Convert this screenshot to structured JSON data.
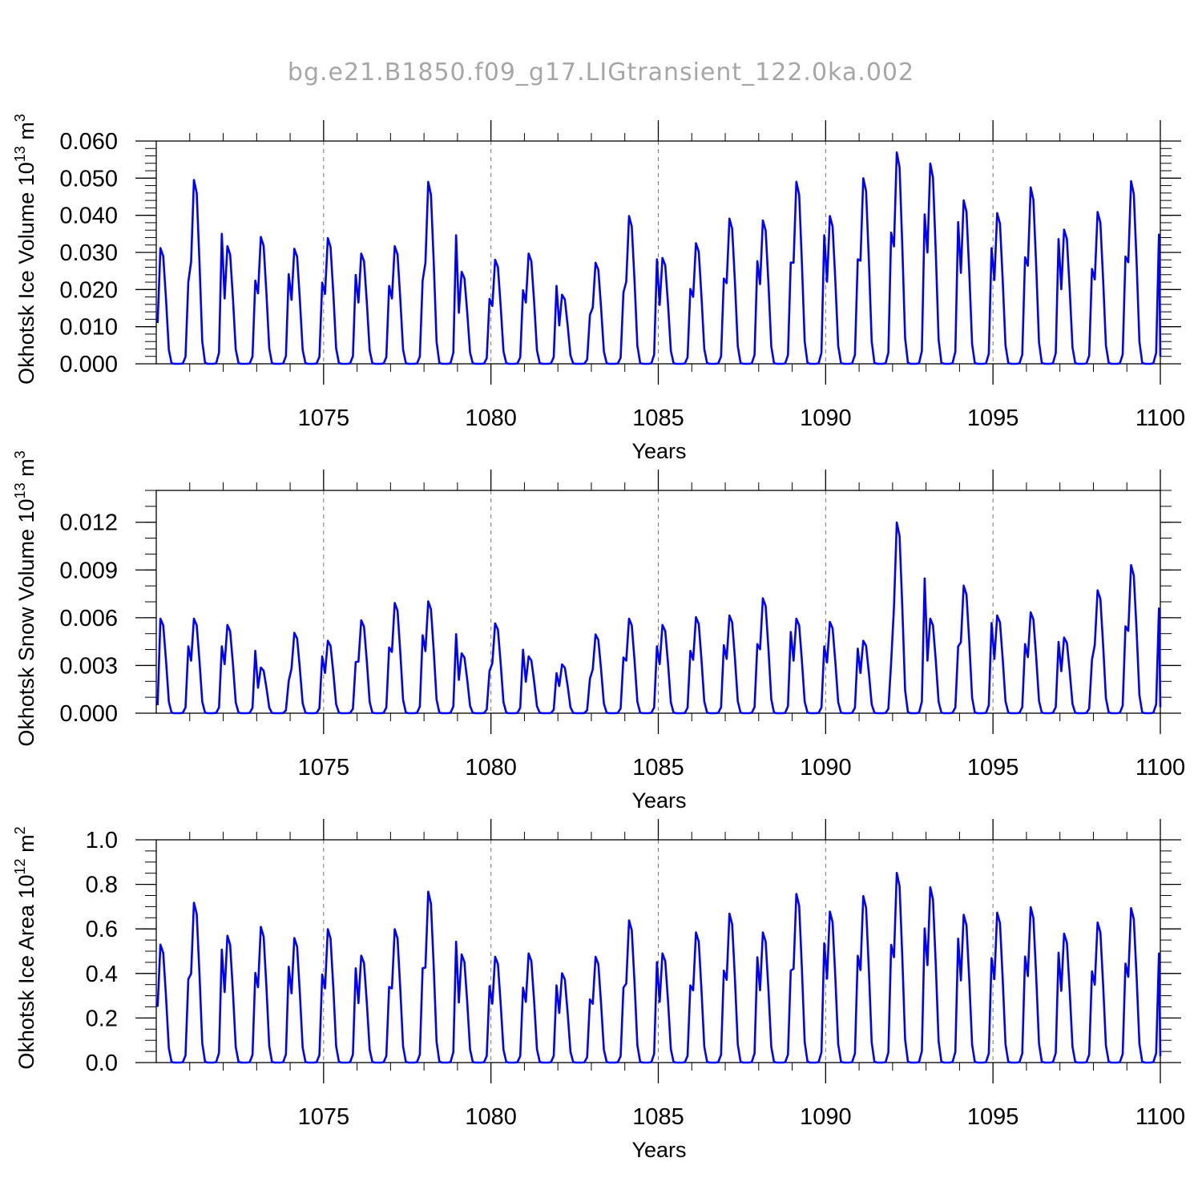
{
  "chart_data": [
    {
      "type": "line",
      "title": "bg.e21.B1850.f09_g17.LIGtransient_122.0ka.002",
      "xlabel": "Years",
      "ylabel": "Okhotsk Ice Volume 10",
      "ylabel_exp": "13",
      "ylabel_unit": " m",
      "ylabel_unit_exp": "3",
      "xlim": [
        1070,
        1100
      ],
      "ylim": [
        0,
        0.06
      ],
      "x_ticks": [
        1075,
        1080,
        1085,
        1090,
        1095,
        1100
      ],
      "x_tick_labels": [
        "1075",
        "1080",
        "1085",
        "1090",
        "1095",
        "1100"
      ],
      "y_ticks": [
        0,
        0.01,
        0.02,
        0.03,
        0.04,
        0.05,
        0.06
      ],
      "y_tick_labels": [
        "0.000",
        "0.010",
        "0.020",
        "0.030",
        "0.040",
        "0.050",
        "0.060"
      ],
      "y_minor_step": 0.002,
      "vgrid": [
        1075,
        1080,
        1085,
        1090,
        1095
      ],
      "color": "#0000ff",
      "series_name": "Okhotsk Ice Volume",
      "start_value": 0.011,
      "annual_peaks": [
        0.0315,
        0.05,
        0.032,
        0.0345,
        0.0313,
        0.0342,
        0.03,
        0.032,
        0.0495,
        0.025,
        0.0283,
        0.03,
        0.0188,
        0.0275,
        0.0402,
        0.0288,
        0.0328,
        0.0395,
        0.039,
        0.0495,
        0.0402,
        0.0505,
        0.0575,
        0.0545,
        0.0445,
        0.041,
        0.048,
        0.0365,
        0.0413,
        0.0497
      ]
    },
    {
      "type": "line",
      "title": "",
      "xlabel": "Years",
      "ylabel": "Okhotsk Snow Volume 10",
      "ylabel_exp": "13",
      "ylabel_unit": " m",
      "ylabel_unit_exp": "3",
      "xlim": [
        1070,
        1100
      ],
      "ylim": [
        0,
        0.014
      ],
      "x_ticks": [
        1075,
        1080,
        1085,
        1090,
        1095,
        1100
      ],
      "x_tick_labels": [
        "1075",
        "1080",
        "1085",
        "1090",
        "1095",
        "1100"
      ],
      "y_ticks": [
        0,
        0.003,
        0.006,
        0.009,
        0.012
      ],
      "y_tick_labels": [
        "0.000",
        "0.003",
        "0.006",
        "0.009",
        "0.012"
      ],
      "y_minor_step": 0.001,
      "vgrid": [
        1075,
        1080,
        1085,
        1090,
        1095
      ],
      "color": "#0000ff",
      "series_name": "Okhotsk Snow Volume",
      "start_value": 0.0005,
      "annual_peaks": [
        0.006,
        0.006,
        0.0056,
        0.0029,
        0.0051,
        0.0046,
        0.0059,
        0.007,
        0.0071,
        0.0038,
        0.0057,
        0.0036,
        0.0031,
        0.005,
        0.006,
        0.0056,
        0.0061,
        0.0062,
        0.0073,
        0.006,
        0.0058,
        0.0046,
        0.0121,
        0.006,
        0.0081,
        0.0062,
        0.0064,
        0.0048,
        0.0078,
        0.0094
      ]
    },
    {
      "type": "line",
      "title": "",
      "xlabel": "Years",
      "ylabel": "Okhotsk Ice Area 10",
      "ylabel_exp": "12",
      "ylabel_unit": " m",
      "ylabel_unit_exp": "2",
      "xlim": [
        1070,
        1100
      ],
      "ylim": [
        0,
        1.0
      ],
      "x_ticks": [
        1075,
        1080,
        1085,
        1090,
        1095,
        1100
      ],
      "x_tick_labels": [
        "1075",
        "1080",
        "1085",
        "1090",
        "1095",
        "1100"
      ],
      "y_ticks": [
        0,
        0.2,
        0.4,
        0.6,
        0.8,
        1.0
      ],
      "y_tick_labels": [
        "0.0",
        "0.2",
        "0.4",
        "0.6",
        "0.8",
        "1.0"
      ],
      "y_minor_step": 0.05,
      "vgrid": [
        1075,
        1080,
        1085,
        1090,
        1095
      ],
      "color": "#0000ff",
      "series_name": "Okhotsk Ice Area",
      "start_value": 0.25,
      "annual_peaks": [
        0.535,
        0.725,
        0.575,
        0.615,
        0.565,
        0.605,
        0.485,
        0.605,
        0.775,
        0.49,
        0.48,
        0.495,
        0.405,
        0.48,
        0.645,
        0.495,
        0.59,
        0.675,
        0.59,
        0.765,
        0.685,
        0.755,
        0.86,
        0.795,
        0.67,
        0.68,
        0.705,
        0.585,
        0.635,
        0.7
      ]
    }
  ]
}
